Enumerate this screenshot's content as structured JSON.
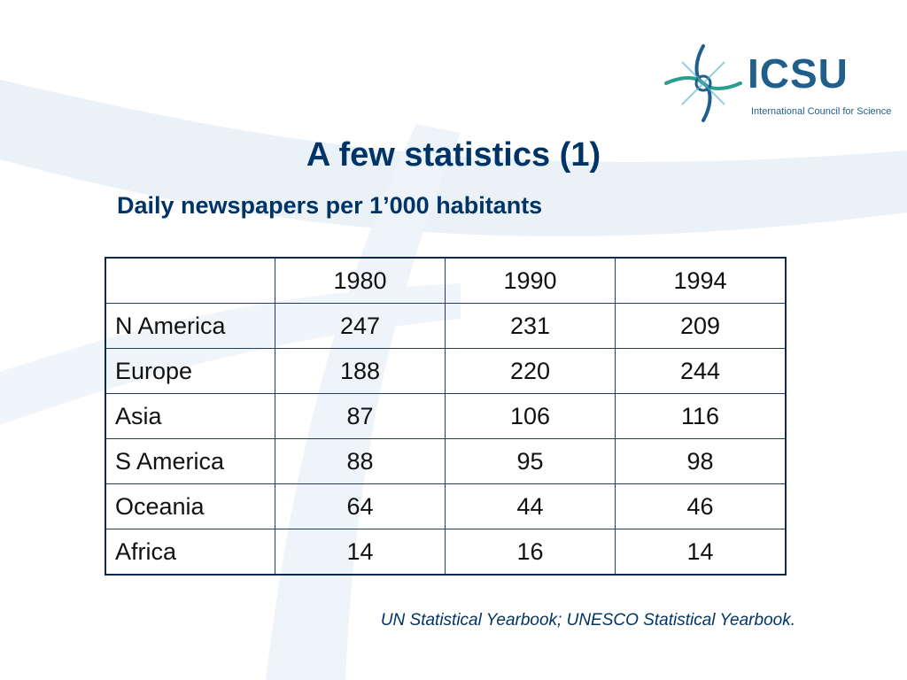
{
  "logo": {
    "wordmark": "ICSU",
    "tagline": "International Council for Science",
    "symbol_icon": "icsu-emblem-icon"
  },
  "title": "A few statistics (1)",
  "subtitle": "Daily newspapers per 1’000 habitants",
  "table": {
    "columns": [
      "",
      "1980",
      "1990",
      "1994"
    ],
    "rows": [
      {
        "region": "N America",
        "values": [
          "247",
          "231",
          "209"
        ]
      },
      {
        "region": "Europe",
        "values": [
          "188",
          "220",
          "244"
        ]
      },
      {
        "region": "Asia",
        "values": [
          "87",
          "106",
          "116"
        ]
      },
      {
        "region": "S America",
        "values": [
          "88",
          "95",
          "98"
        ]
      },
      {
        "region": "Oceania",
        "values": [
          "64",
          "44",
          "46"
        ]
      },
      {
        "region": "Africa",
        "values": [
          "14",
          "16",
          "14"
        ]
      }
    ]
  },
  "source": "UN Statistical Yearbook; UNESCO Statistical Yearbook.",
  "colors": {
    "title": "#003366",
    "logo": "#1f5f8b",
    "logo_accent": "#2a9d8f",
    "table_border": "#0b2a4f",
    "watermark": "#e9f1f7"
  }
}
